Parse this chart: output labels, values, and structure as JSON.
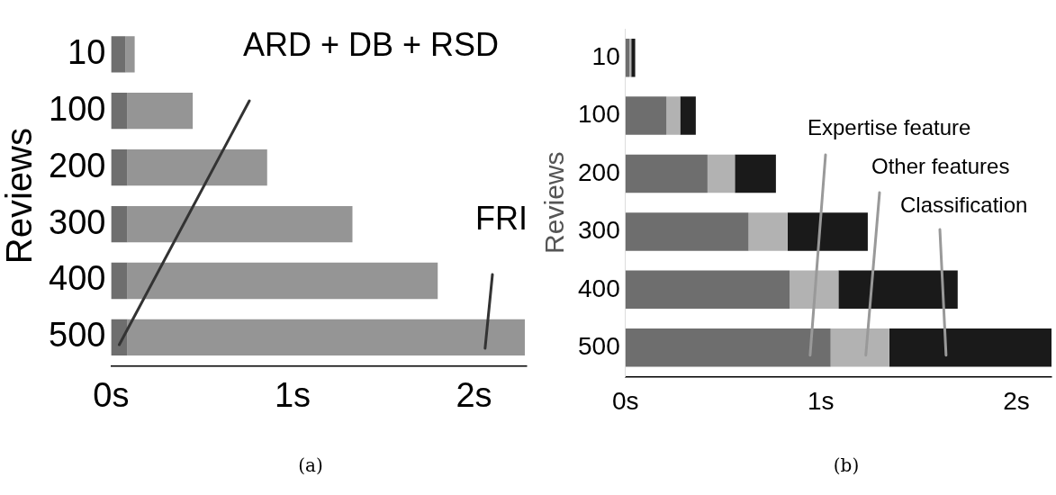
{
  "chart_data": [
    {
      "type": "bar",
      "orientation": "horizontal",
      "stacked": true,
      "ylabel": "Reviews",
      "categories": [
        "10",
        "100",
        "200",
        "300",
        "400",
        "500"
      ],
      "series": [
        {
          "name": "ARD + DB + RSD",
          "color": "#6e6e6e",
          "values": [
            0.08,
            0.09,
            0.09,
            0.09,
            0.09,
            0.09
          ]
        },
        {
          "name": "FRI",
          "color": "#959595",
          "values": [
            0.05,
            0.36,
            0.77,
            1.24,
            1.71,
            2.19
          ]
        }
      ],
      "xlim": [
        0,
        2.29
      ],
      "xticks": [
        {
          "value": 0,
          "label": "0s"
        },
        {
          "value": 1,
          "label": "1s"
        },
        {
          "value": 2,
          "label": "2s"
        }
      ],
      "grid": false,
      "legend": false,
      "annotations": [
        "(a)"
      ]
    },
    {
      "type": "bar",
      "orientation": "horizontal",
      "stacked": true,
      "ylabel": "Reviews",
      "categories": [
        "10",
        "100",
        "200",
        "300",
        "400",
        "500"
      ],
      "series": [
        {
          "name": "Expertise feature",
          "color": "#6e6e6e",
          "values": [
            0.02,
            0.21,
            0.42,
            0.63,
            0.84,
            1.05
          ]
        },
        {
          "name": "Other features",
          "color": "#b2b2b2",
          "values": [
            0.01,
            0.07,
            0.14,
            0.2,
            0.25,
            0.3
          ]
        },
        {
          "name": "Classification",
          "color": "#1a1a1a",
          "values": [
            0.02,
            0.08,
            0.21,
            0.41,
            0.61,
            0.83
          ]
        }
      ],
      "xlim": [
        0,
        2.18
      ],
      "xticks": [
        {
          "value": 0,
          "label": "0s"
        },
        {
          "value": 1,
          "label": "1s"
        },
        {
          "value": 2,
          "label": "2s"
        }
      ],
      "grid": false,
      "legend": false,
      "annotations": [
        "(b)"
      ]
    }
  ]
}
